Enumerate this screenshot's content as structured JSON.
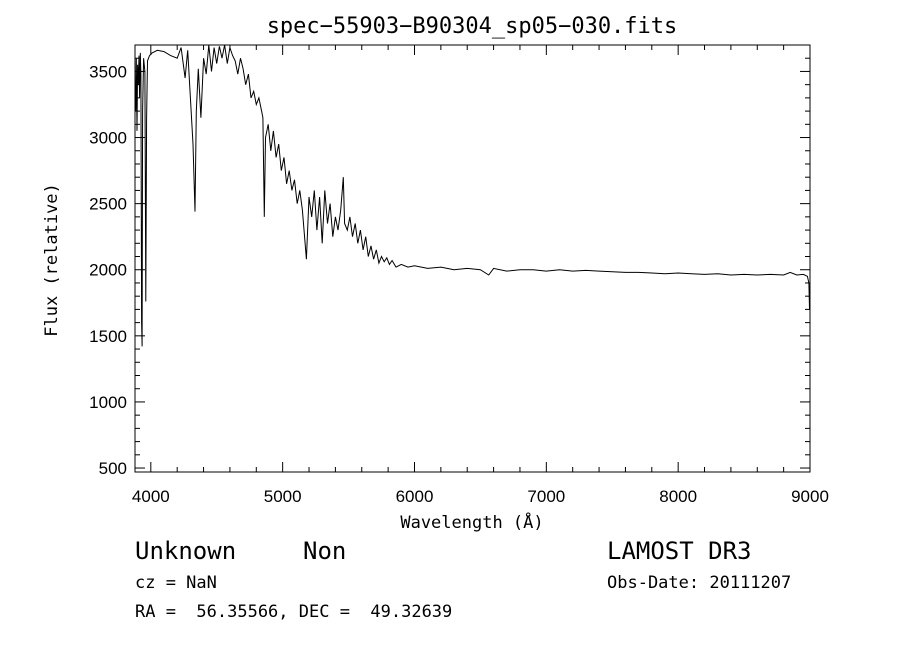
{
  "chart_data": {
    "type": "line",
    "title": "spec−55903−B90304_sp05−030.fits",
    "xlabel": "Wavelength (Å)",
    "ylabel": "Flux (relative)",
    "xlim": [
      3880,
      9000
    ],
    "ylim": [
      470,
      3700
    ],
    "xticks": [
      4000,
      5000,
      6000,
      7000,
      8000,
      9000
    ],
    "yticks": [
      500,
      1000,
      1500,
      2000,
      2500,
      3000,
      3500
    ],
    "grid": false,
    "series": [
      {
        "values": [
          [
            3885,
            3200
          ],
          [
            3890,
            3600
          ],
          [
            3895,
            3050
          ],
          [
            3900,
            3550
          ],
          [
            3905,
            3400
          ],
          [
            3910,
            3620
          ],
          [
            3915,
            3300
          ],
          [
            3920,
            3640
          ],
          [
            3925,
            3480
          ],
          [
            3930,
            1600
          ],
          [
            3934,
            1420
          ],
          [
            3938,
            3200
          ],
          [
            3945,
            3600
          ],
          [
            3955,
            3500
          ],
          [
            3962,
            1760
          ],
          [
            3968,
            3150
          ],
          [
            3975,
            3580
          ],
          [
            3990,
            3620
          ],
          [
            4010,
            3640
          ],
          [
            4050,
            3660
          ],
          [
            4100,
            3650
          ],
          [
            4150,
            3620
          ],
          [
            4200,
            3600
          ],
          [
            4230,
            3680
          ],
          [
            4260,
            3450
          ],
          [
            4280,
            3660
          ],
          [
            4300,
            3300
          ],
          [
            4320,
            2950
          ],
          [
            4335,
            2440
          ],
          [
            4345,
            3200
          ],
          [
            4360,
            3520
          ],
          [
            4380,
            3150
          ],
          [
            4400,
            3600
          ],
          [
            4420,
            3480
          ],
          [
            4440,
            3700
          ],
          [
            4460,
            3500
          ],
          [
            4480,
            3680
          ],
          [
            4500,
            3560
          ],
          [
            4520,
            3690
          ],
          [
            4540,
            3600
          ],
          [
            4560,
            3700
          ],
          [
            4580,
            3560
          ],
          [
            4600,
            3680
          ],
          [
            4620,
            3620
          ],
          [
            4640,
            3580
          ],
          [
            4660,
            3480
          ],
          [
            4680,
            3600
          ],
          [
            4700,
            3520
          ],
          [
            4720,
            3400
          ],
          [
            4740,
            3480
          ],
          [
            4760,
            3300
          ],
          [
            4780,
            3350
          ],
          [
            4800,
            3250
          ],
          [
            4820,
            3300
          ],
          [
            4840,
            3200
          ],
          [
            4850,
            3150
          ],
          [
            4861,
            2400
          ],
          [
            4870,
            3000
          ],
          [
            4890,
            3100
          ],
          [
            4910,
            2900
          ],
          [
            4930,
            3050
          ],
          [
            4950,
            2850
          ],
          [
            4970,
            2950
          ],
          [
            4990,
            2750
          ],
          [
            5010,
            2850
          ],
          [
            5030,
            2650
          ],
          [
            5050,
            2750
          ],
          [
            5070,
            2600
          ],
          [
            5090,
            2680
          ],
          [
            5110,
            2500
          ],
          [
            5130,
            2600
          ],
          [
            5150,
            2450
          ],
          [
            5170,
            2200
          ],
          [
            5180,
            2080
          ],
          [
            5200,
            2550
          ],
          [
            5220,
            2400
          ],
          [
            5240,
            2600
          ],
          [
            5260,
            2300
          ],
          [
            5280,
            2550
          ],
          [
            5300,
            2200
          ],
          [
            5320,
            2600
          ],
          [
            5340,
            2350
          ],
          [
            5360,
            2500
          ],
          [
            5380,
            2250
          ],
          [
            5400,
            2400
          ],
          [
            5420,
            2300
          ],
          [
            5440,
            2450
          ],
          [
            5460,
            2700
          ],
          [
            5470,
            2350
          ],
          [
            5490,
            2300
          ],
          [
            5510,
            2400
          ],
          [
            5530,
            2250
          ],
          [
            5550,
            2350
          ],
          [
            5570,
            2200
          ],
          [
            5590,
            2300
          ],
          [
            5610,
            2150
          ],
          [
            5630,
            2250
          ],
          [
            5650,
            2100
          ],
          [
            5670,
            2180
          ],
          [
            5690,
            2080
          ],
          [
            5710,
            2150
          ],
          [
            5730,
            2050
          ],
          [
            5750,
            2100
          ],
          [
            5770,
            2060
          ],
          [
            5790,
            2090
          ],
          [
            5810,
            2040
          ],
          [
            5830,
            2070
          ],
          [
            5860,
            2020
          ],
          [
            5900,
            2040
          ],
          [
            5950,
            2020
          ],
          [
            6000,
            2030
          ],
          [
            6100,
            2010
          ],
          [
            6200,
            2020
          ],
          [
            6300,
            2000
          ],
          [
            6400,
            2010
          ],
          [
            6500,
            2000
          ],
          [
            6563,
            1960
          ],
          [
            6600,
            2010
          ],
          [
            6700,
            1990
          ],
          [
            6800,
            2000
          ],
          [
            6900,
            2000
          ],
          [
            7000,
            1990
          ],
          [
            7100,
            2000
          ],
          [
            7200,
            1990
          ],
          [
            7300,
            1995
          ],
          [
            7400,
            1990
          ],
          [
            7500,
            1985
          ],
          [
            7600,
            1980
          ],
          [
            7700,
            1980
          ],
          [
            7800,
            1975
          ],
          [
            7900,
            1970
          ],
          [
            8000,
            1975
          ],
          [
            8100,
            1970
          ],
          [
            8200,
            1965
          ],
          [
            8300,
            1970
          ],
          [
            8400,
            1960
          ],
          [
            8500,
            1965
          ],
          [
            8600,
            1960
          ],
          [
            8700,
            1965
          ],
          [
            8800,
            1960
          ],
          [
            8850,
            1980
          ],
          [
            8900,
            1960
          ],
          [
            8950,
            1965
          ],
          [
            8980,
            1950
          ],
          [
            8992,
            1900
          ],
          [
            8996,
            1700
          ],
          [
            9000,
            1800
          ]
        ]
      }
    ]
  },
  "info": {
    "object_class": "Unknown",
    "object_subclass": "Non",
    "cz": "cz = NaN",
    "coords": "RA =  56.35566, DEC =  49.32639",
    "survey": "LAMOST DR3",
    "obs_date": "Obs-Date: 20111207"
  },
  "colors": {
    "line": "#000000",
    "axes": "#000000",
    "background": "#ffffff"
  }
}
